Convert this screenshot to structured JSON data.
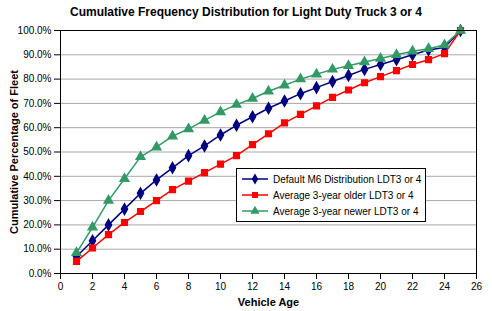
{
  "chart_data": {
    "type": "line",
    "title": "Cumulative Frequency Distribution for Light Duty Truck 3 or 4",
    "x_label": "Vehicle Age",
    "y_label": "Cumulative Percentage of Fleet",
    "x": [
      1,
      2,
      3,
      4,
      5,
      6,
      7,
      8,
      9,
      10,
      11,
      12,
      13,
      14,
      15,
      16,
      17,
      18,
      19,
      20,
      21,
      22,
      23,
      24,
      25
    ],
    "series": [
      {
        "name": "Default M6 Distribution LDT3 or 4",
        "color": "#000080",
        "marker": "diamond",
        "values": [
          7,
          13.5,
          20,
          26.5,
          33,
          38.5,
          43.5,
          48.5,
          52.5,
          57,
          61,
          64.5,
          68,
          71,
          74,
          76.5,
          79,
          81.5,
          84,
          86,
          88,
          90,
          92,
          93,
          100
        ]
      },
      {
        "name": "Average 3-year older LDT3 or 4",
        "color": "#ff0000",
        "marker": "square",
        "values": [
          5,
          10.5,
          16,
          21,
          25.5,
          30,
          34.5,
          38,
          41.5,
          45,
          48.5,
          53,
          57.5,
          62,
          65.5,
          69,
          72.5,
          75.5,
          78.5,
          81,
          83.5,
          86,
          88,
          90.5,
          100
        ]
      },
      {
        "name": "Average 3-year newer LDT3 or 4",
        "color": "#339966",
        "marker": "triangle",
        "values": [
          8.5,
          19,
          30,
          39,
          48,
          52,
          56.5,
          59.5,
          63,
          66.5,
          69.5,
          72,
          75,
          77.5,
          80,
          82,
          84,
          85.5,
          87,
          88.5,
          90,
          91.5,
          92.5,
          94,
          100
        ]
      }
    ],
    "xlim": [
      0,
      26
    ],
    "xticks": [
      0,
      2,
      4,
      6,
      8,
      10,
      12,
      14,
      16,
      18,
      20,
      22,
      24,
      26
    ],
    "ylim": [
      0,
      100
    ],
    "yticks": [
      {
        "value": 0,
        "label": "0.0%"
      },
      {
        "value": 10,
        "label": "10.0%"
      },
      {
        "value": 20,
        "label": "20.0%"
      },
      {
        "value": 30,
        "label": "30.0%"
      },
      {
        "value": 40,
        "label": "40.0%"
      },
      {
        "value": 50,
        "label": "50.0%"
      },
      {
        "value": 60,
        "label": "60.0%"
      },
      {
        "value": 70,
        "label": "70.0%"
      },
      {
        "value": 80,
        "label": "80.0%"
      },
      {
        "value": 90,
        "label": "90.0%"
      },
      {
        "value": 100,
        "label": "100.0%"
      }
    ],
    "grid": true,
    "legend": "lower right"
  }
}
